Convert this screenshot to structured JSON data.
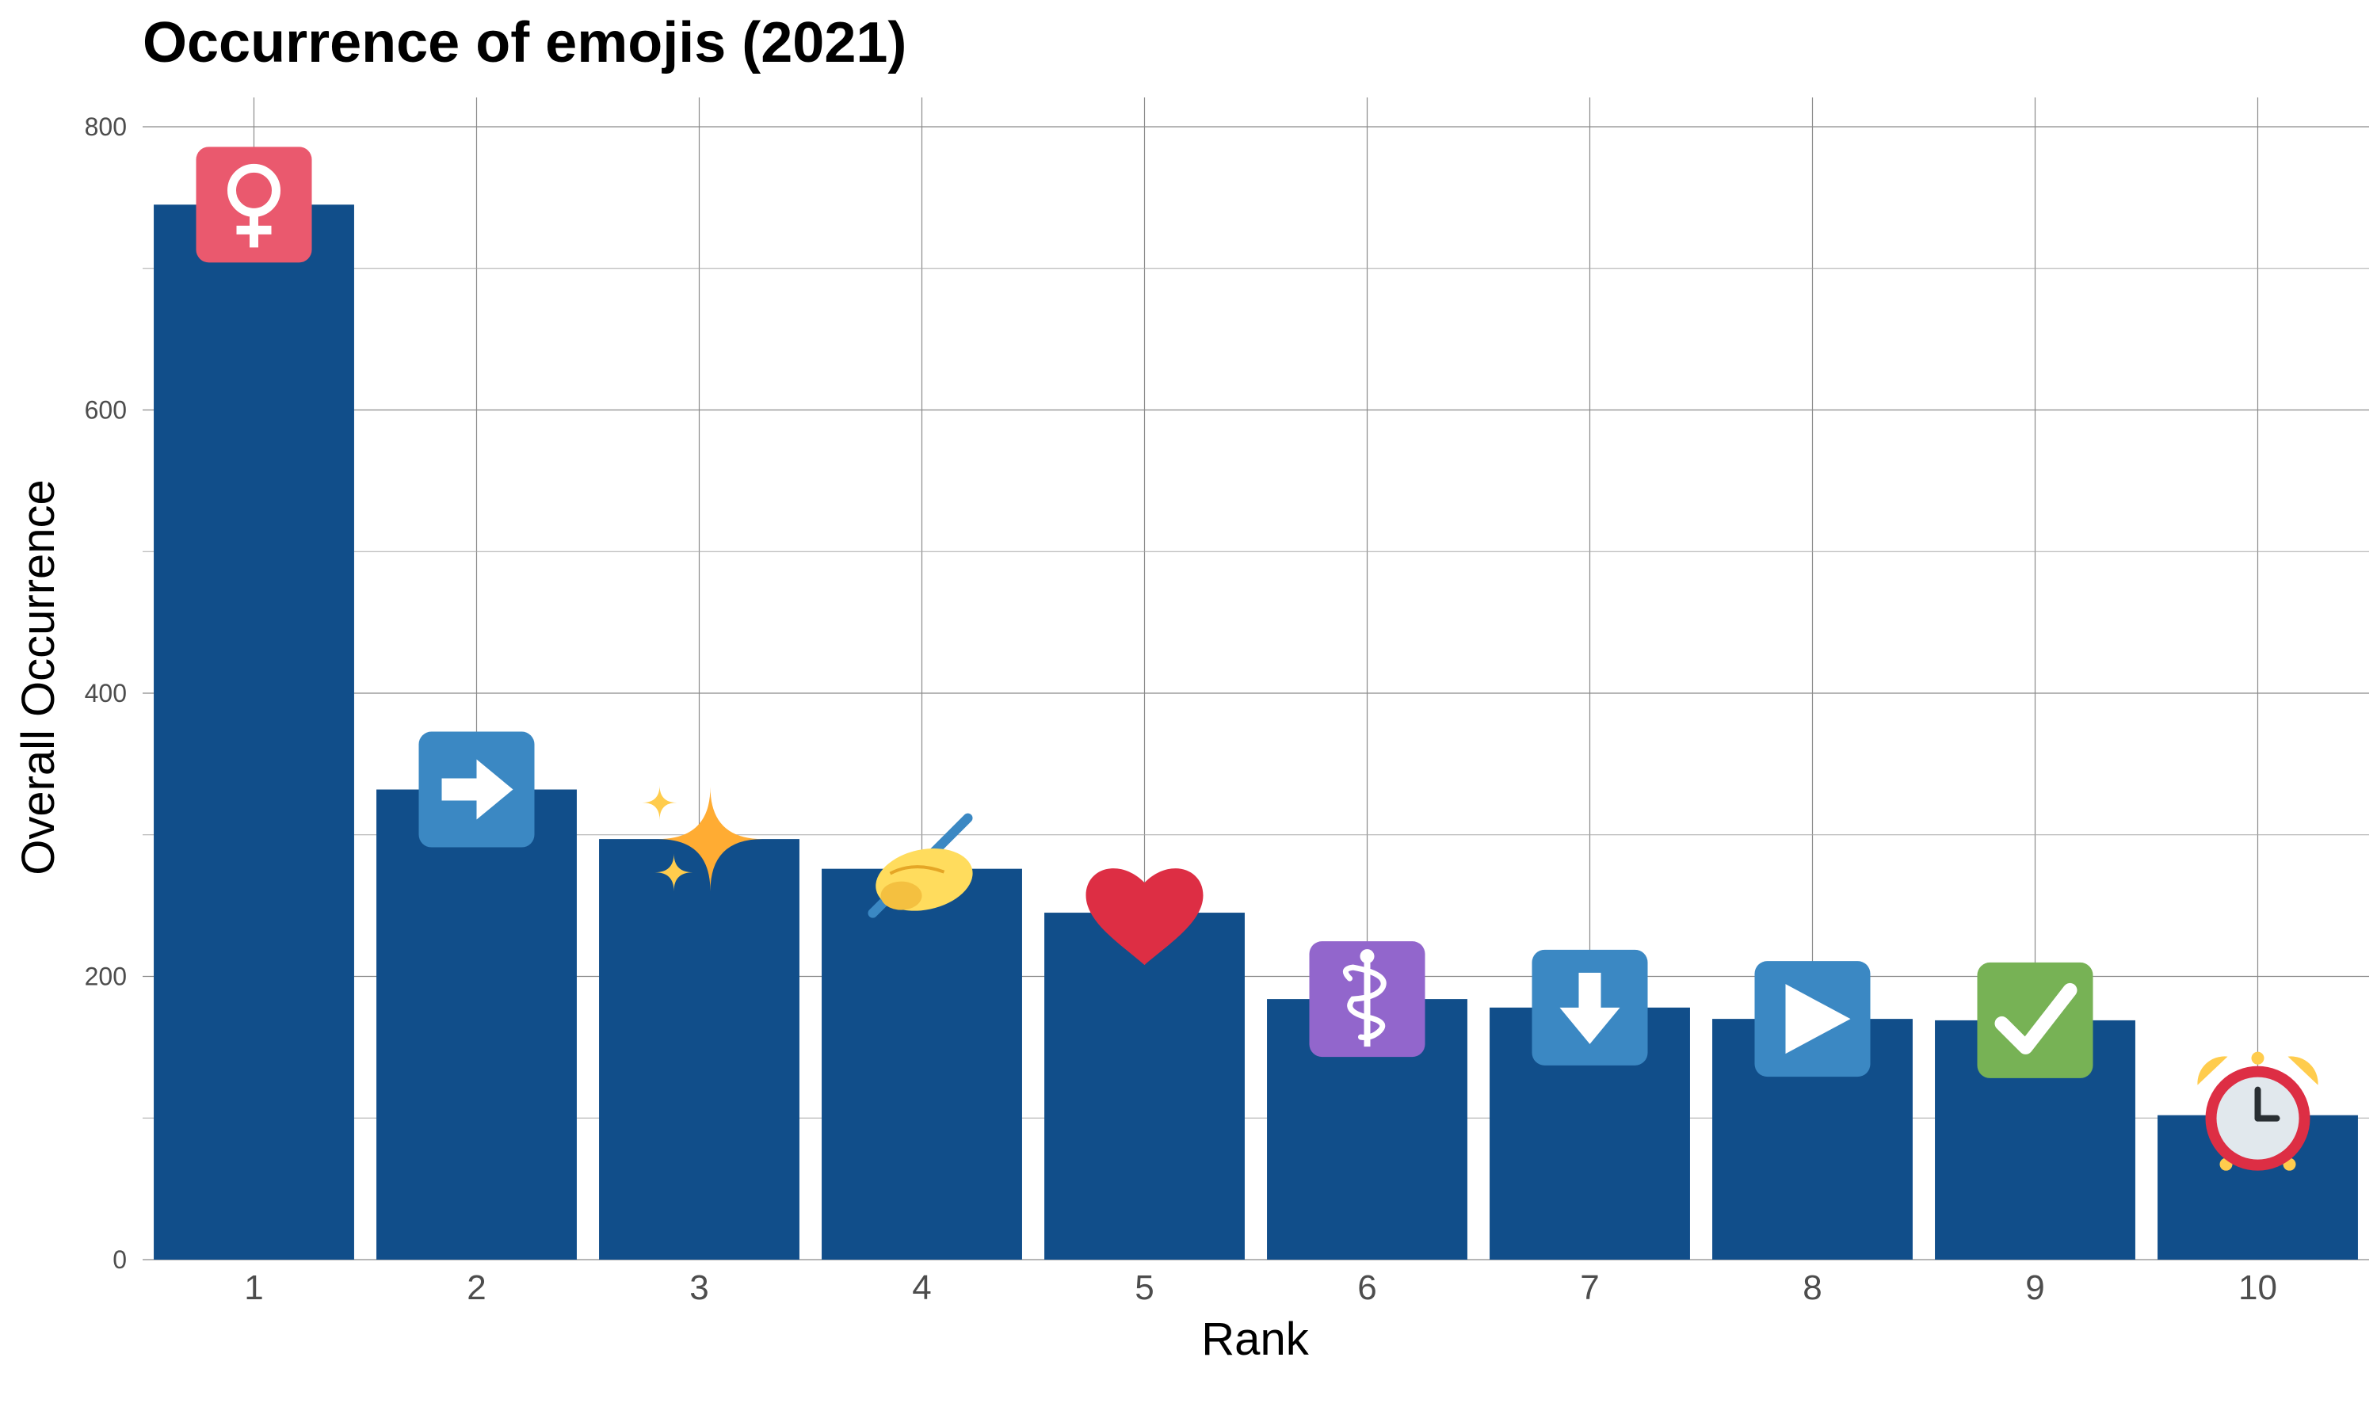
{
  "chart_data": {
    "type": "bar",
    "title": "Occurrence of emojis (2021)",
    "xlabel": "Rank",
    "ylabel": "Overall Occurrence",
    "categories": [
      "1",
      "2",
      "3",
      "4",
      "5",
      "6",
      "7",
      "8",
      "9",
      "10"
    ],
    "values": [
      745,
      332,
      297,
      276,
      245,
      184,
      178,
      170,
      169,
      102
    ],
    "emojis": [
      "female-sign",
      "right-arrow",
      "sparkles",
      "writing-hand",
      "red-heart",
      "medical-symbol",
      "down-arrow",
      "play-button",
      "check-mark-button",
      "alarm-clock"
    ],
    "ylim": [
      0,
      800
    ],
    "yticks": [
      0,
      200,
      400,
      600,
      800
    ],
    "grid": true,
    "bar_color": "#114E8A"
  }
}
